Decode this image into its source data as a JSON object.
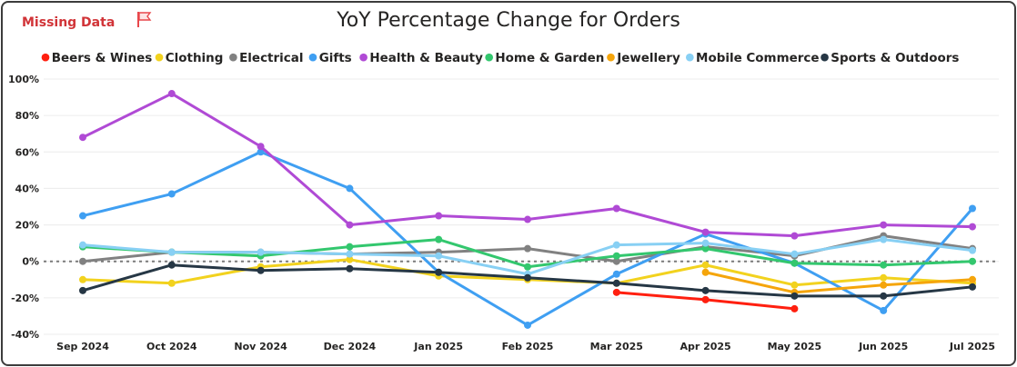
{
  "header": {
    "missing_data_label": "Missing Data",
    "flag_icon": "flag-icon",
    "flag_color": "#e8474b"
  },
  "chart_data": {
    "type": "line",
    "title": "YoY Percentage Change for Orders",
    "xlabel": "",
    "ylabel": "",
    "categories": [
      "Sep 2024",
      "Oct 2024",
      "Nov 2024",
      "Dec 2024",
      "Jan 2025",
      "Feb 2025",
      "Mar 2025",
      "Apr 2025",
      "May 2025",
      "Jun 2025",
      "Jul 2025"
    ],
    "ylim": [
      -40,
      100
    ],
    "yticks": [
      -40,
      -20,
      0,
      20,
      40,
      60,
      80,
      100
    ],
    "ytick_labels": [
      "-40%",
      "-20%",
      "0%",
      "20%",
      "40%",
      "60%",
      "80%",
      "100%"
    ],
    "grid": true,
    "zero_reference_line": "dotted",
    "legend_position": "top",
    "series": [
      {
        "name": "Beers & Wines",
        "color": "#ff1f0f",
        "values": [
          null,
          null,
          null,
          null,
          null,
          null,
          -17,
          -21,
          -26,
          null,
          null
        ]
      },
      {
        "name": "Clothing",
        "color": "#f2d21e",
        "values": [
          -10,
          -12,
          -3,
          1,
          -8,
          -10,
          -12,
          -2,
          -13,
          -9,
          -12
        ]
      },
      {
        "name": "Electrical",
        "color": "#818181",
        "values": [
          0,
          5,
          5,
          4,
          5,
          7,
          0,
          8,
          3,
          14,
          7
        ]
      },
      {
        "name": "Gifts",
        "color": "#3f9ff2",
        "values": [
          25,
          37,
          60,
          40,
          -6,
          -35,
          -7,
          15,
          -1,
          -27,
          29
        ]
      },
      {
        "name": "Health & Beauty",
        "color": "#b04ad5",
        "values": [
          68,
          92,
          63,
          20,
          25,
          23,
          29,
          16,
          14,
          20,
          19
        ]
      },
      {
        "name": "Home & Garden",
        "color": "#33c76e",
        "values": [
          8,
          5,
          3,
          8,
          12,
          -3,
          3,
          7,
          -1,
          -2,
          0
        ]
      },
      {
        "name": "Jewellery",
        "color": "#f5a50b",
        "values": [
          null,
          null,
          null,
          null,
          null,
          null,
          null,
          -6,
          -17,
          -13,
          -10
        ]
      },
      {
        "name": "Mobile Commerce",
        "color": "#88d0f4",
        "values": [
          9,
          5,
          5,
          4,
          3,
          -7,
          9,
          10,
          4,
          12,
          6
        ]
      },
      {
        "name": "Sports & Outdoors",
        "color": "#263745",
        "values": [
          -16,
          -2,
          -5,
          -4,
          -6,
          -9,
          -12,
          -16,
          -19,
          -19,
          -14
        ]
      }
    ]
  }
}
